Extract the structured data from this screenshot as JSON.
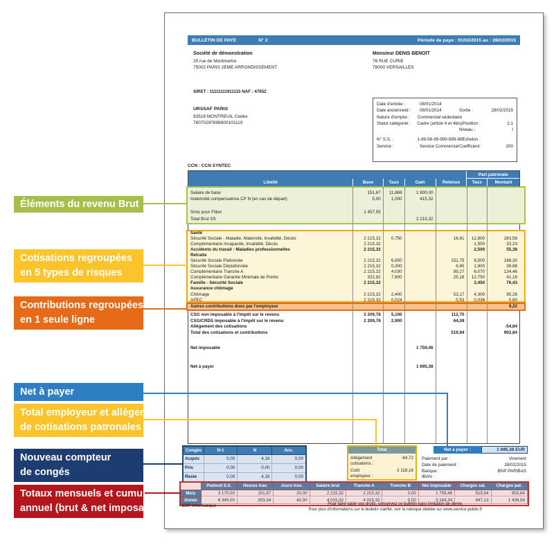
{
  "callouts": [
    {
      "id": "elements-revenu-brut",
      "color": "#a6bf4b",
      "label_lines": [
        "Éléments du revenu Brut"
      ]
    },
    {
      "id": "cotisations-5-risques",
      "color": "#fbc42c",
      "label_lines": [
        "Cotisations regroupées",
        "en 5 types de risques"
      ]
    },
    {
      "id": "contributions-1-ligne",
      "color": "#e66a17",
      "label_lines": [
        "Contributions regroupées",
        "en 1 seule ligne"
      ]
    },
    {
      "id": "net-a-payer",
      "color": "#2e7fc1",
      "label_lines": [
        "Net à payer"
      ]
    },
    {
      "id": "total-employeur",
      "color": "#fbc42c",
      "label_lines": [
        "Total employeur et allègement",
        "de cotisations patronales"
      ]
    },
    {
      "id": "compteur-conges",
      "color": "#1d3d70",
      "label_lines": [
        "Nouveau compteur",
        "de congés"
      ]
    },
    {
      "id": "totaux-mensuels",
      "color": "#b5161c",
      "label_lines": [
        "Totaux mensuels et cumul",
        "annuel (brut & net imposable)"
      ]
    }
  ],
  "band": {
    "title": "BULLETIN DE PAYE",
    "number": "N° 2",
    "period": "Période de paye : 01/02/2015 au : 28/02/2015"
  },
  "employer": {
    "name": "Société de démonstration",
    "address1": "25 rue de Montmartre",
    "address2": "75002 PARIS 2EME ARRONDISSEMENT",
    "siret_line": "SIRET : 11111111911115  NAF : 4765Z",
    "urssaf_name": "URSSAF PARIS",
    "urssaf_line1": "93518 MONTREUIL Cedex",
    "urssaf_line2": "78070297696900101119"
  },
  "employee": {
    "name": "Monsieur  DENIS BENOIT",
    "address1": "76 RUE CURIE",
    "address2": "78000 VERSAILLES"
  },
  "info_box": {
    "rows": [
      {
        "l": "Date d'entrée :",
        "v": "08/01/2014",
        "r": "",
        "rv": ""
      },
      {
        "l": "Date ancienneté :",
        "v": "08/01/2014",
        "r": "Sortie :",
        "rv": "28/02/2015"
      },
      {
        "l": "Nature d'emploi :",
        "v": "Commercial sédentaire",
        "r": "",
        "rv": ""
      },
      {
        "l": "Statut catégoriel :",
        "v": "Cadre (article 4 et 4bis)",
        "r": "Position :",
        "rv": "2.1"
      },
      {
        "l": "",
        "v": "",
        "r": "Niveau :",
        "rv": "I"
      },
      {
        "l": "N° S.S. :",
        "v": "1-99-99-99-999-999-99",
        "r": "Echelon :",
        "rv": "",
        "gap": true
      },
      {
        "l": "Service :",
        "v": "Service Commercial",
        "r": "Coefficient :",
        "rv": "200"
      }
    ]
  },
  "ccn": "CCN : CCN SYNTEC",
  "table": {
    "headers": {
      "libelle": "Libellé",
      "base": "Base",
      "taux": "Taux",
      "gain": "Gain",
      "retenue": "Retenue",
      "part_patronale": "Part patronale",
      "taux2": "Taux",
      "montant": "Montant"
    },
    "sections": [
      {
        "style": "green",
        "rows": [
          {
            "l": "Salaire de base",
            "b": "151,67",
            "t": "11,868",
            "g": "1 800,00"
          },
          {
            "l": "Indemnité compensatrice CP N (en cas de départ)",
            "b": "5,00",
            "t": "1,000",
            "g": "415,32"
          },
          {},
          {
            "l": "Smic pour Fillon",
            "b": "1 457,55"
          },
          {
            "l": "Total Brut SS",
            "g": "2 215,32"
          }
        ]
      },
      {
        "style": "gap",
        "rows": []
      },
      {
        "style": "yellow",
        "rows": [
          {
            "l": "Santé",
            "bold": true
          },
          {
            "l": "Sécurité Sociale - Maladie, Maternité, Invalidité, Décès",
            "b": "2 215,32",
            "t": "0,750",
            "r": "16,61",
            "pt": "12,800",
            "pm": "283,56"
          },
          {
            "l": "Complémentaire Incapacité, Invalidité, Décès",
            "b": "2 215,32",
            "pt": "1,500",
            "pm": "33,23"
          },
          {
            "l": "Accidents du travail - Maladies professionnelles",
            "bold": true,
            "b": "2 215,32",
            "pt": "2,500",
            "pm": "55,38"
          },
          {
            "l": "Retraite",
            "bold": true
          },
          {
            "l": "Sécurité Sociale Plafonnée",
            "b": "2 215,32",
            "t": "6,850",
            "r": "151,75",
            "pt": "8,500",
            "pm": "188,30"
          },
          {
            "l": "Sécurité Sociale Déplafonnée",
            "b": "2 215,32",
            "t": "0,300",
            "r": "6,65",
            "pt": "1,800",
            "pm": "39,88"
          },
          {
            "l": "Complémentaire Tranche A",
            "b": "2 215,32",
            "t": "4,030",
            "r": "89,27",
            "pt": "6,070",
            "pm": "134,46"
          },
          {
            "l": "Complémentaire Garantie Minimale de Points",
            "b": "322,82",
            "t": "7,800",
            "r": "25,18",
            "pt": "12,750",
            "pm": "41,16"
          },
          {
            "l": "Famille - Sécurité Sociale",
            "bold": true,
            "b": "2 215,32",
            "pt": "3,450",
            "pm": "76,43"
          },
          {
            "l": "Assurance chômage",
            "bold": true
          },
          {
            "l": "Chômage",
            "b": "2 215,32",
            "t": "2,400",
            "r": "53,17",
            "pt": "4,300",
            "pm": "95,26"
          },
          {
            "l": "APEC",
            "b": "2 215,32",
            "t": "0,024",
            "r": "0,53",
            "pt": "0,036",
            "pm": "0,80"
          }
        ]
      },
      {
        "style": "orange",
        "rows": [
          {
            "l": "Autres contributions dues par l'employeur",
            "bold": true,
            "pm": "9,22"
          }
        ]
      },
      {
        "style": "plain",
        "flex": true,
        "rows": [
          {
            "l": "CSG non imposable à l'impôt sur le revenu",
            "bold": true,
            "b": "2 209,78",
            "t": "5,100",
            "r": "112,70"
          },
          {
            "l": "CSG/CRDS imposable à l'impôt sur le revenu",
            "bold": true,
            "b": "2 209,78",
            "t": "2,900",
            "r": "64,08"
          },
          {
            "l": "Allègement des cotisations",
            "bold": true,
            "pm": "-54,84"
          },
          {
            "l": "Total des cotisations et contributions",
            "bold": true,
            "r": "519,94",
            "pm": "902,84"
          },
          {
            "sp": 14
          },
          {
            "l": "Net imposable",
            "bold": true,
            "g": "1 759,46"
          },
          {
            "sp": 18
          },
          {
            "l": "Net à payer",
            "bold": true,
            "g": "1 695,38"
          }
        ]
      }
    ]
  },
  "conges": {
    "headers": [
      "Congés",
      "N-1",
      "N",
      "Anc."
    ],
    "rows": [
      {
        "label": "Acquis",
        "values": [
          "0,00",
          "4,16",
          "0,00"
        ]
      },
      {
        "label": "Pris",
        "values": [
          "0,00",
          "0,00",
          "0,00"
        ]
      },
      {
        "label": "Reste",
        "values": [
          "0,00",
          "4,16",
          "0,00"
        ]
      }
    ]
  },
  "total_box": {
    "title": "Total",
    "entries": [
      {
        "lines": [
          "Allègement",
          "cotisations :"
        ],
        "value": "-94,72"
      },
      {
        "lines": [
          "Coût",
          "employeur :"
        ],
        "value": "3 118,16"
      }
    ]
  },
  "net_pay": {
    "label": "Net à payer :",
    "value": "1 695,38  EUR"
  },
  "payment": {
    "rows": [
      {
        "label": "Paiement par :",
        "value": "Virement"
      },
      {
        "label": "Date de paiement :",
        "value": "28/02/2015"
      },
      {
        "label": "Banque :",
        "value": "BNP PARIBAS"
      },
      {
        "label": "IBAN :",
        "value": ""
      }
    ]
  },
  "totals_table": {
    "headers": [
      "",
      "Plafond S.S.",
      "Heures trav.",
      "Jours trav.",
      "Salaire brut",
      "Tranche A",
      "Tranche B",
      "Net imposable",
      "Charges sal.",
      "Charges pat."
    ],
    "rows": [
      {
        "label": "Mois",
        "values": [
          "3 170,00",
          "151,67",
          "20,00",
          "2 215,32",
          "2 215,32",
          "0,00",
          "1 759,46",
          "519,94",
          "902,84"
        ]
      },
      {
        "label": "Année",
        "values": [
          "6 340,00",
          "303,34",
          "42,00",
          "4 015,32",
          "4 015,32",
          "0,00",
          "3 184,34",
          "947,13",
          "1 439,58"
        ]
      }
    ]
  },
  "footer": {
    "left": "EBP Informatique",
    "line1": "Pour faire valoir vos droits, conservez ce bulletin sans limitation de durée.",
    "line2": "Pour plus d'informations sur le bulletin clarifié, voir la rubrique dédiée sur www.service-public.fr"
  },
  "colors": {
    "header_blue": "#3e7cb6",
    "green_fill": "#edf0d9",
    "green_border": "#a9c24a",
    "yellow_fill": "#fdf5d8",
    "yellow_border": "#f2a70f",
    "orange_fill": "#f5c18e",
    "orange_border": "#e56917",
    "conges_border": "#27496e",
    "total_header": "#7b99a1",
    "total_border": "#e2b400",
    "netpay_fill": "#cfe3f3",
    "totals_header": "#5b7ca0",
    "totals_fill": "#f2dede",
    "totals_border": "#c03030"
  }
}
